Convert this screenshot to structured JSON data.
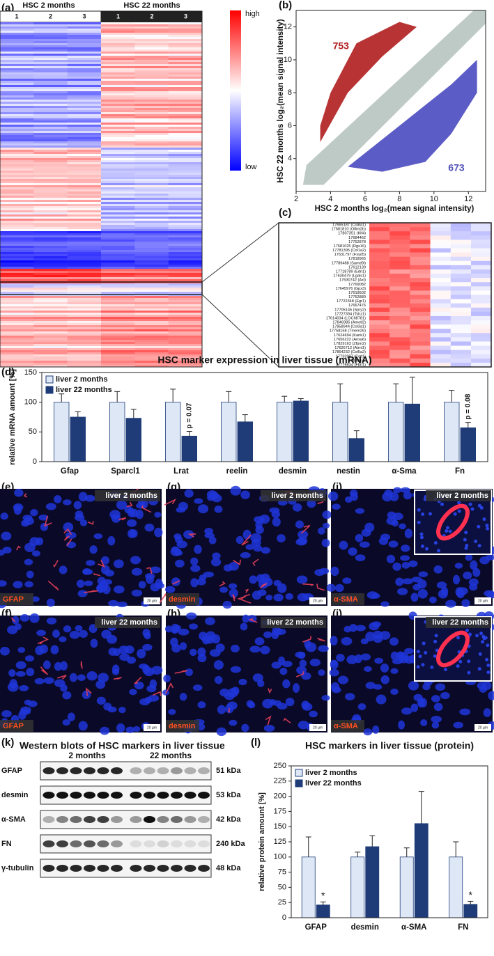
{
  "figure": {
    "panel_labels": [
      "(a)",
      "(b)",
      "(c)",
      "(d)",
      "(e)",
      "(f)",
      "(g)",
      "(h)",
      "(i)",
      "(j)",
      "(k)",
      "(l)"
    ],
    "heatmap": {
      "groups": [
        "HSC 2 months",
        "HSC 22 months"
      ],
      "replicates": [
        "1",
        "2",
        "3",
        "1",
        "2",
        "3"
      ],
      "scale": [
        "high",
        "low"
      ]
    },
    "gene_list": [
      "17665187 (Col8a1)",
      "17681810 (Olfml2b)",
      "17807351 (Klf4)",
      "17684462",
      "17752878",
      "17681025 (Rgs16)",
      "17781395 (Col1a2)",
      "17631797 (Fxyd5)",
      "17818965",
      "17789488 (Samd9l)",
      "17612139",
      "17718789 (Edn1)",
      "17630479 (Lgals1)",
      "17630742 (Axl)",
      "17769082",
      "17645976 (Gpx3)",
      "17619502",
      "17752880",
      "17722348 (Egr1)",
      "17667476",
      "17705145 (Spry2)",
      "17727394 (Tshz1)",
      "17614034 (LOC68781)",
      "17846985 (Amotl2)",
      "17858944 (Col3a1)",
      "17758158 (Tmem26)",
      "17624694 (Kank1)",
      "17656222 (Anxa6)",
      "17829163 (Zfpm2)",
      "17626712 (Atrnl1)",
      "17864232 (Col5a2)",
      "17733987 (Cotl1)",
      "17880467",
      "17776634 (Fbn1)"
    ],
    "micrographs": [
      {
        "label": "liver 2 months",
        "stain": "GFAP",
        "scale_bar": "20 µm"
      },
      {
        "label": "liver 22 months",
        "stain": "GFAP",
        "scale_bar": "20 µm"
      },
      {
        "label": "liver 2 months",
        "stain": "desmin",
        "scale_bar": "20 µm"
      },
      {
        "label": "liver 22 months",
        "stain": "desmin",
        "scale_bar": "20 µm"
      },
      {
        "label": "liver 2 months",
        "stain": "α-SMA",
        "scale_bar": "20 µm"
      },
      {
        "label": "liver 22 months",
        "stain": "α-SMA",
        "scale_bar": "20 µm"
      }
    ],
    "western": {
      "title": "Western blots of HSC markers in liver tissue",
      "groups": [
        "2 months",
        "22 months"
      ],
      "rows": [
        {
          "name": "GFAP",
          "size": "51 kDa"
        },
        {
          "name": "desmin",
          "size": "53 kDa"
        },
        {
          "name": "α-SMA",
          "size": "42 kDa"
        },
        {
          "name": "FN",
          "size": "240 kDa"
        },
        {
          "name": "γ-tubulin",
          "size": "48 kDa"
        }
      ]
    }
  },
  "chart_data": [
    {
      "type": "scatter",
      "xlabel": "HSC 2 months log₂(mean signal intensity)",
      "ylabel": "HSC 22 months log₂(mean signal intensity)",
      "xlim": [
        2,
        13
      ],
      "ylim": [
        2,
        13
      ],
      "xticks": [
        2,
        4,
        6,
        8,
        10,
        12
      ],
      "yticks": [
        4,
        6,
        8,
        10,
        12
      ],
      "colors": {
        "up": "#b01e1e",
        "down": "#4a4ac0",
        "unchanged": "#b7c4c0"
      },
      "annotations": [
        {
          "text": "753",
          "color": "#b01e1e"
        },
        {
          "text": "673",
          "color": "#5050b8"
        }
      ]
    },
    {
      "type": "bar",
      "title": "HSC marker expression in liver tissue (mRNA)",
      "ylabel": "relative mRNA amount [%]",
      "categories": [
        "Gfap",
        "Sparcl1",
        "Lrat",
        "reelin",
        "desmin",
        "nestin",
        "α-Sma",
        "Fn"
      ],
      "ylim": [
        0,
        150
      ],
      "yticks": [
        0,
        50,
        100,
        150
      ],
      "legend": "upper left",
      "series": [
        {
          "name": "liver 2 months",
          "color": "#dde7f6",
          "values": [
            100,
            100,
            100,
            100,
            100,
            100,
            100,
            100
          ],
          "errors": [
            14,
            18,
            22,
            18,
            10,
            31,
            31,
            20
          ]
        },
        {
          "name": "liver 22 months",
          "color": "#1f3c78",
          "values": [
            75,
            73,
            43,
            67,
            102,
            39,
            97,
            57
          ],
          "errors": [
            9,
            15,
            8,
            12,
            4,
            13,
            45,
            9
          ]
        }
      ],
      "annotations": [
        {
          "category": "Lrat",
          "text": "p = 0.07"
        },
        {
          "category": "Fn",
          "text": "p = 0.08"
        }
      ]
    },
    {
      "type": "bar",
      "title": "HSC markers in liver tissue (protein)",
      "ylabel": "relative protein amount [%]",
      "categories": [
        "GFAP",
        "desmin",
        "α-SMA",
        "FN"
      ],
      "ylim": [
        0,
        250
      ],
      "yticks": [
        0,
        25,
        50,
        75,
        100,
        125,
        150,
        175,
        200,
        225,
        250
      ],
      "legend": "upper left",
      "series": [
        {
          "name": "liver 2 months",
          "color": "#dde7f6",
          "values": [
            100,
            100,
            100,
            100
          ],
          "errors": [
            33,
            8,
            15,
            25
          ]
        },
        {
          "name": "liver 22 months",
          "color": "#1f3c78",
          "values": [
            21,
            117,
            155,
            22
          ],
          "errors": [
            5,
            18,
            53,
            5
          ]
        }
      ],
      "annotations": [
        {
          "category": "GFAP",
          "text": "*"
        },
        {
          "category": "FN",
          "text": "*"
        }
      ]
    }
  ]
}
